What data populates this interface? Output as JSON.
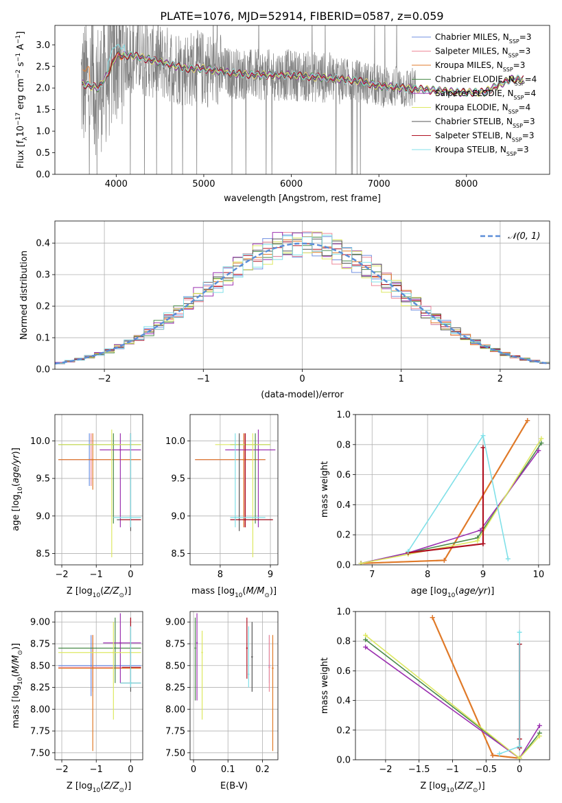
{
  "figure_title": "PLATE=1076, MJD=52914, FIBERID=0587, z=0.059",
  "models": [
    {
      "name": "Chabrier MILES",
      "n": "3",
      "color": "#6f8fe0"
    },
    {
      "name": "Salpeter MILES",
      "n": "3",
      "color": "#ee8899"
    },
    {
      "name": "Kroupa MILES",
      "n": "3",
      "color": "#e07a28"
    },
    {
      "name": "Chabrier ELODIE",
      "n": "4",
      "color": "#4a8a4a"
    },
    {
      "name": "Salpeter ELODIE",
      "n": "4",
      "color": "#9b30b0"
    },
    {
      "name": "Kroupa ELODIE",
      "n": "4",
      "color": "#dde860"
    },
    {
      "name": "Chabrier STELIB",
      "n": "3",
      "color": "#555555"
    },
    {
      "name": "Salpeter STELIB",
      "n": "3",
      "color": "#b01020"
    },
    {
      "name": "Kroupa STELIB",
      "n": "3",
      "color": "#80e0e8"
    }
  ],
  "legend_ssp_prefix": "N",
  "legend_ssp_sub": "SSP",
  "normal_label": "𝒩(0, 1)",
  "chart_data": [
    {
      "id": "spectrum",
      "type": "line",
      "xlabel": "wavelength [Angstrom, rest frame]",
      "ylabel": "Flux [f_λ 10^-17 erg cm^-2 s^-1 A^-1]",
      "xlim": [
        3300,
        8950
      ],
      "ylim": [
        0,
        3.45
      ],
      "xticks": [
        4000,
        5000,
        6000,
        7000,
        8000
      ],
      "yticks": [
        0.0,
        0.5,
        1.0,
        1.5,
        2.0,
        2.5,
        3.0
      ],
      "grid": false,
      "data_color": "#808080",
      "model_continuum": {
        "x": [
          3600,
          3700,
          3800,
          3900,
          4000,
          4200,
          4500,
          4800,
          5000,
          5300,
          5600,
          6000,
          6300,
          6600,
          6800,
          7000,
          7300,
          7600,
          7900,
          8200,
          8500,
          8700
        ],
        "y": [
          2.1,
          2.05,
          2.0,
          2.3,
          2.75,
          2.75,
          2.6,
          2.45,
          2.45,
          2.35,
          2.3,
          2.3,
          2.25,
          2.2,
          2.15,
          2.05,
          2.0,
          1.95,
          1.9,
          1.9,
          2.2,
          2.2
        ]
      }
    },
    {
      "id": "residual_hist",
      "type": "line",
      "xlabel": "(data-model)/error",
      "ylabel": "Normed distribution",
      "xlim": [
        -2.5,
        2.5
      ],
      "ylim": [
        0,
        0.47
      ],
      "xticks": [
        -2,
        -1,
        0,
        1,
        2
      ],
      "yticks": [
        0.0,
        0.1,
        0.2,
        0.3,
        0.4
      ],
      "grid": true,
      "normal_color": "#5b8ed8"
    },
    {
      "id": "age_vs_z",
      "type": "scatter",
      "xlabel": "Z [log10(Z/Z⊙)]",
      "ylabel": "age [log10(age/yr)]",
      "xlim": [
        -2.2,
        0.35
      ],
      "ylim": [
        8.35,
        10.35
      ],
      "xticks": [
        -2,
        -1,
        0
      ],
      "yticks": [
        8.5,
        9.0,
        9.5,
        10.0
      ],
      "grid": true,
      "points": [
        {
          "m": 0,
          "x": -1.2,
          "y": 9.75,
          "x0": -2.1,
          "x1": 0.3,
          "y0": 9.4,
          "y1": 10.1
        },
        {
          "m": 1,
          "x": -1.15,
          "y": 9.75,
          "x0": -2.1,
          "x1": 0.3,
          "y0": 9.4,
          "y1": 10.1
        },
        {
          "m": 2,
          "x": -1.1,
          "y": 9.75,
          "x0": -2.1,
          "x1": 0.3,
          "y0": 9.35,
          "y1": 10.1
        },
        {
          "m": 3,
          "x": -0.5,
          "y": 9.95,
          "x0": -2.1,
          "x1": 0.3,
          "y0": 8.9,
          "y1": 10.1
        },
        {
          "m": 4,
          "x": -0.3,
          "y": 9.88,
          "x0": -0.9,
          "x1": 0.3,
          "y0": 8.85,
          "y1": 10.1
        },
        {
          "m": 5,
          "x": -0.55,
          "y": 9.95,
          "x0": -2.1,
          "x1": 0.3,
          "y0": 8.45,
          "y1": 10.15
        },
        {
          "m": 6,
          "x": 0.0,
          "y": 8.95,
          "x0": -0.4,
          "x1": 0.3,
          "y0": 8.8,
          "y1": 10.1
        },
        {
          "m": 7,
          "x": 0.0,
          "y": 8.95,
          "x0": -0.3,
          "x1": 0.3,
          "y0": 8.85,
          "y1": 10.1
        },
        {
          "m": 8,
          "x": 0.0,
          "y": 8.98,
          "x0": -0.5,
          "x1": 0.3,
          "y0": 8.85,
          "y1": 10.1
        }
      ]
    },
    {
      "id": "age_vs_mass",
      "type": "scatter",
      "xlabel": "mass [log10(M/M⊙)]",
      "ylabel": "",
      "xlim": [
        7.4,
        9.15
      ],
      "ylim": [
        8.35,
        10.35
      ],
      "xticks": [
        8,
        9
      ],
      "yticks": [
        8.5,
        9.0,
        9.5,
        10.0
      ],
      "grid": true,
      "points": [
        {
          "m": 0,
          "x": 8.5,
          "y": 9.75,
          "x0": 7.5,
          "x1": 8.9,
          "y0": 8.85,
          "y1": 10.1
        },
        {
          "m": 1,
          "x": 8.48,
          "y": 9.75,
          "x0": 7.5,
          "x1": 8.9,
          "y0": 8.85,
          "y1": 10.1
        },
        {
          "m": 2,
          "x": 8.47,
          "y": 9.75,
          "x0": 7.5,
          "x1": 8.9,
          "y0": 8.85,
          "y1": 10.1
        },
        {
          "m": 3,
          "x": 8.7,
          "y": 9.95,
          "x0": 8.2,
          "x1": 9.0,
          "y0": 8.9,
          "y1": 10.1
        },
        {
          "m": 4,
          "x": 8.76,
          "y": 9.88,
          "x0": 8.1,
          "x1": 9.1,
          "y0": 8.85,
          "y1": 10.15
        },
        {
          "m": 5,
          "x": 8.65,
          "y": 9.95,
          "x0": 7.9,
          "x1": 9.0,
          "y0": 8.45,
          "y1": 10.1
        },
        {
          "m": 6,
          "x": 8.38,
          "y": 8.95,
          "x0": 8.2,
          "x1": 9.05,
          "y0": 8.8,
          "y1": 10.1
        },
        {
          "m": 7,
          "x": 8.5,
          "y": 8.95,
          "x0": 8.2,
          "x1": 9.05,
          "y0": 8.85,
          "y1": 10.1
        },
        {
          "m": 8,
          "x": 8.3,
          "y": 8.98,
          "x0": 8.2,
          "x1": 8.9,
          "y0": 8.85,
          "y1": 10.1
        }
      ]
    },
    {
      "id": "weight_vs_age",
      "type": "line",
      "xlabel": "age [log10(age/yr)]",
      "ylabel": "mass weight",
      "xlim": [
        6.7,
        10.2
      ],
      "ylim": [
        0,
        1.0
      ],
      "xticks": [
        7,
        8,
        9,
        10
      ],
      "yticks": [
        0.0,
        0.2,
        0.4,
        0.6,
        0.8,
        1.0
      ],
      "grid": true,
      "series": [
        {
          "m": 0,
          "x": [
            6.8,
            8.3,
            9.8
          ],
          "y": [
            0.01,
            0.03,
            0.96
          ]
        },
        {
          "m": 1,
          "x": [
            6.8,
            8.3,
            9.8
          ],
          "y": [
            0.01,
            0.03,
            0.96
          ]
        },
        {
          "m": 2,
          "x": [
            6.8,
            8.3,
            9.8
          ],
          "y": [
            0.01,
            0.03,
            0.96
          ]
        },
        {
          "m": 3,
          "x": [
            6.8,
            7.65,
            8.9,
            10.05
          ],
          "y": [
            0.01,
            0.08,
            0.18,
            0.81
          ]
        },
        {
          "m": 4,
          "x": [
            6.8,
            7.65,
            8.95,
            10.0
          ],
          "y": [
            0.01,
            0.08,
            0.23,
            0.76
          ]
        },
        {
          "m": 5,
          "x": [
            6.8,
            7.65,
            8.9,
            10.05
          ],
          "y": [
            0.01,
            0.07,
            0.16,
            0.84
          ]
        },
        {
          "m": 6,
          "x": [
            7.65,
            9.0,
            9.0
          ],
          "y": [
            0.08,
            0.14,
            0.78
          ]
        },
        {
          "m": 7,
          "x": [
            7.65,
            9.0,
            9.0
          ],
          "y": [
            0.08,
            0.14,
            0.78
          ]
        },
        {
          "m": 8,
          "x": [
            7.65,
            9.0,
            9.45
          ],
          "y": [
            0.09,
            0.86,
            0.04
          ]
        }
      ]
    },
    {
      "id": "mass_vs_z",
      "type": "scatter",
      "xlabel": "Z [log10(Z/Z⊙)]",
      "ylabel": "mass [log10(M/M⊙)]",
      "xlim": [
        -2.2,
        0.35
      ],
      "ylim": [
        7.42,
        9.12
      ],
      "xticks": [
        -2,
        -1,
        0
      ],
      "yticks": [
        7.5,
        7.75,
        8.0,
        8.25,
        8.5,
        8.75,
        9.0
      ],
      "grid": true,
      "points": [
        {
          "m": 0,
          "x": -1.15,
          "y": 8.5,
          "x0": -2.1,
          "x1": 0.3,
          "y0": 8.15,
          "y1": 8.85
        },
        {
          "m": 1,
          "x": -1.1,
          "y": 8.48,
          "x0": -2.1,
          "x1": 0.3,
          "y0": 8.2,
          "y1": 8.85
        },
        {
          "m": 2,
          "x": -1.1,
          "y": 8.47,
          "x0": -2.1,
          "x1": 0.3,
          "y0": 7.52,
          "y1": 8.85
        },
        {
          "m": 3,
          "x": -0.45,
          "y": 8.7,
          "x0": -2.1,
          "x1": 0.3,
          "y0": 8.3,
          "y1": 9.05
        },
        {
          "m": 4,
          "x": -0.3,
          "y": 8.76,
          "x0": -0.8,
          "x1": 0.3,
          "y0": 8.3,
          "y1": 9.1
        },
        {
          "m": 5,
          "x": -0.5,
          "y": 8.65,
          "x0": -2.1,
          "x1": 0.3,
          "y0": 7.88,
          "y1": 9.0
        },
        {
          "m": 6,
          "x": 0.0,
          "y": 8.3,
          "x0": -0.3,
          "x1": 0.3,
          "y0": 8.2,
          "y1": 9.05
        },
        {
          "m": 7,
          "x": 0.0,
          "y": 8.48,
          "x0": -0.25,
          "x1": 0.3,
          "y0": 8.3,
          "y1": 9.05
        },
        {
          "m": 8,
          "x": 0.0,
          "y": 8.3,
          "x0": -0.3,
          "x1": 0.3,
          "y0": 8.25,
          "y1": 8.95
        }
      ]
    },
    {
      "id": "mass_vs_ebv",
      "type": "scatter",
      "xlabel": "E(B-V)",
      "ylabel": "",
      "xlim": [
        -0.01,
        0.245
      ],
      "ylim": [
        7.42,
        9.12
      ],
      "xticks": [
        0.0,
        0.1,
        0.2
      ],
      "yticks": [
        7.5,
        7.75,
        8.0,
        8.25,
        8.5,
        8.75,
        9.0
      ],
      "grid": true,
      "points": [
        {
          "m": 0,
          "x": 0.22,
          "y": 8.5,
          "y0": 8.3,
          "y1": 8.85
        },
        {
          "m": 1,
          "x": 0.22,
          "y": 8.48,
          "y0": 8.2,
          "y1": 8.85
        },
        {
          "m": 2,
          "x": 0.23,
          "y": 8.47,
          "y0": 7.52,
          "y1": 8.85
        },
        {
          "m": 3,
          "x": 0.005,
          "y": 8.7,
          "y0": 8.1,
          "y1": 9.05
        },
        {
          "m": 4,
          "x": 0.01,
          "y": 8.76,
          "y0": 8.1,
          "y1": 9.1
        },
        {
          "m": 5,
          "x": 0.025,
          "y": 8.65,
          "y0": 7.88,
          "y1": 8.9
        },
        {
          "m": 6,
          "x": 0.17,
          "y": 8.6,
          "y0": 8.2,
          "y1": 9.0
        },
        {
          "m": 7,
          "x": 0.155,
          "y": 8.7,
          "y0": 8.35,
          "y1": 9.05
        },
        {
          "m": 8,
          "x": 0.16,
          "y": 8.4,
          "y0": 8.25,
          "y1": 8.95
        }
      ]
    },
    {
      "id": "weight_vs_z",
      "type": "line",
      "xlabel": "Z [log10(Z/Z⊙)]",
      "ylabel": "mass weight",
      "xlim": [
        -2.45,
        0.45
      ],
      "ylim": [
        0,
        1.0
      ],
      "xticks": [
        -2.0,
        -1.5,
        -1.0,
        -0.5,
        0.0
      ],
      "yticks": [
        0.0,
        0.2,
        0.4,
        0.6,
        0.8,
        1.0
      ],
      "grid": true,
      "series": [
        {
          "m": 0,
          "x": [
            -1.3,
            -0.4,
            0.0
          ],
          "y": [
            0.96,
            0.03,
            0.01
          ]
        },
        {
          "m": 1,
          "x": [
            -1.3,
            -0.4,
            0.0
          ],
          "y": [
            0.96,
            0.03,
            0.01
          ]
        },
        {
          "m": 2,
          "x": [
            -1.3,
            -0.4,
            0.0
          ],
          "y": [
            0.96,
            0.03,
            0.01
          ]
        },
        {
          "m": 3,
          "x": [
            -2.3,
            0.0,
            0.3
          ],
          "y": [
            0.81,
            0.01,
            0.18
          ]
        },
        {
          "m": 4,
          "x": [
            -2.3,
            0.0,
            0.3
          ],
          "y": [
            0.76,
            0.01,
            0.23
          ]
        },
        {
          "m": 5,
          "x": [
            -2.3,
            0.0,
            0.3
          ],
          "y": [
            0.84,
            0.01,
            0.16
          ]
        },
        {
          "m": 6,
          "x": [
            0.0,
            0.0,
            0.0
          ],
          "y": [
            0.08,
            0.14,
            0.78
          ]
        },
        {
          "m": 7,
          "x": [
            0.0,
            0.0,
            0.0
          ],
          "y": [
            0.08,
            0.14,
            0.78
          ]
        },
        {
          "m": 8,
          "x": [
            -0.3,
            0.0,
            0.0
          ],
          "y": [
            0.04,
            0.09,
            0.86
          ]
        }
      ]
    }
  ]
}
